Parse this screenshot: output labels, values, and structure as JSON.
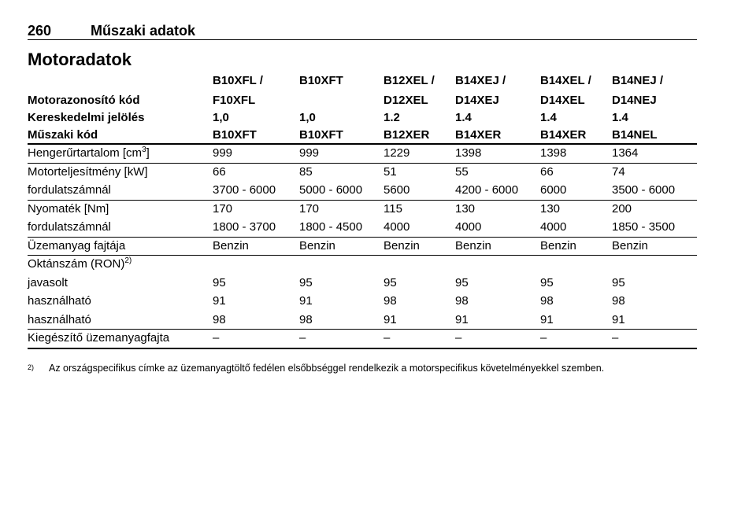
{
  "header": {
    "page": "260",
    "title": "Műszaki adatok"
  },
  "section": "Motoradatok",
  "table": {
    "head": [
      [
        null,
        "B10XFL /",
        "B10XFT",
        "B12XEL /",
        "B14XEJ /",
        "B14XEL /",
        "B14NEJ /"
      ],
      [
        "Motorazonosító kód",
        "F10XFL",
        null,
        "D12XEL",
        "D14XEJ",
        "D14XEL",
        "D14NEJ"
      ],
      [
        "Kereskedelmi jelölés",
        "1,0",
        "1,0",
        "1.2",
        "1.4",
        "1.4",
        "1.4"
      ],
      [
        "Műszaki kód",
        "B10XFT",
        "B10XFT",
        "B12XER",
        "B14XER",
        "B14XER",
        "B14NEL"
      ]
    ],
    "groups": [
      [
        {
          "label": "Hengerűrtartalom [cm",
          "sup": "3",
          "label_end": "]",
          "cells": [
            "999",
            "999",
            "1229",
            "1398",
            "1398",
            "1364"
          ]
        }
      ],
      [
        {
          "label": "Motorteljesítmény [kW]",
          "cells": [
            "66",
            "85",
            "51",
            "55",
            "66",
            "74"
          ]
        },
        {
          "label": "fordulatszámnál",
          "cells": [
            "3700 - 6000",
            "5000 - 6000",
            "5600",
            "4200 - 6000",
            "6000",
            "3500 - 6000"
          ]
        }
      ],
      [
        {
          "label": "Nyomaték [Nm]",
          "cells": [
            "170",
            "170",
            "115",
            "130",
            "130",
            "200"
          ]
        },
        {
          "label": "fordulatszámnál",
          "cells": [
            "1800 - 3700",
            "1800 - 4500",
            "4000",
            "4000",
            "4000",
            "1850 - 3500"
          ]
        }
      ],
      [
        {
          "label": "Üzemanyag fajtája",
          "cells": [
            "Benzin",
            "Benzin",
            "Benzin",
            "Benzin",
            "Benzin",
            "Benzin"
          ]
        }
      ],
      [
        {
          "label": "Oktánszám (RON)",
          "sup": "2)",
          "cells": []
        },
        {
          "label": "javasolt",
          "cells": [
            "95",
            "95",
            "95",
            "95",
            "95",
            "95"
          ]
        },
        {
          "label": "használható",
          "cells": [
            "91",
            "91",
            "98",
            "98",
            "98",
            "98"
          ]
        },
        {
          "label": "használható",
          "cells": [
            "98",
            "98",
            "91",
            "91",
            "91",
            "91"
          ]
        }
      ],
      [
        {
          "label": "Kiegészítő üzemanyagfajta",
          "cells": [
            "–",
            "–",
            "–",
            "–",
            "–",
            "–"
          ]
        }
      ]
    ]
  },
  "footnote": {
    "marker": "2)",
    "text": "Az országspecifikus címke az üzemanyagtöltő fedélen elsőbbséggel rendelkezik a motorspecifikus követelményekkel szemben."
  }
}
